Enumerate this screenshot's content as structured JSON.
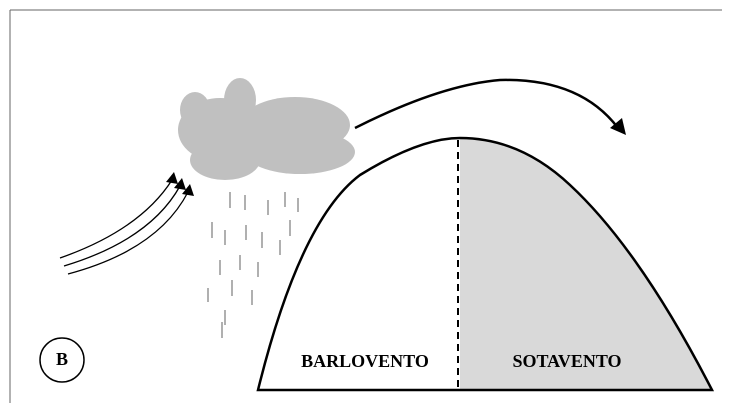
{
  "badge": {
    "label": "B"
  },
  "regions": [
    {
      "label": "BARLOVENTO"
    },
    {
      "label": "SOTAVENTO"
    }
  ]
}
